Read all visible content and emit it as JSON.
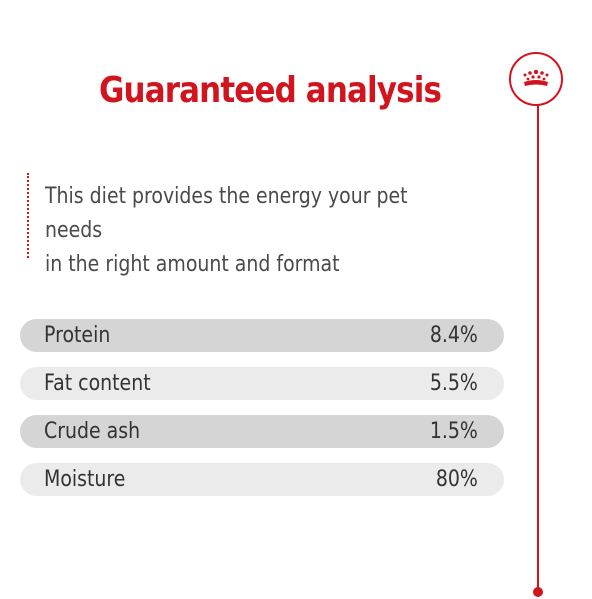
{
  "header": {
    "title": "Guaranteed analysis"
  },
  "brand": {
    "logo_icon": "crown-icon",
    "accent_color": "#d2141e"
  },
  "intro": {
    "line1": "This diet provides the energy your pet needs",
    "line2": "in the right amount and format"
  },
  "analysis": {
    "rows": [
      {
        "label": "Protein",
        "value": "8.4%"
      },
      {
        "label": "Fat content",
        "value": "5.5%"
      },
      {
        "label": "Crude ash",
        "value": "1.5%"
      },
      {
        "label": "Moisture",
        "value": "80%"
      }
    ]
  }
}
